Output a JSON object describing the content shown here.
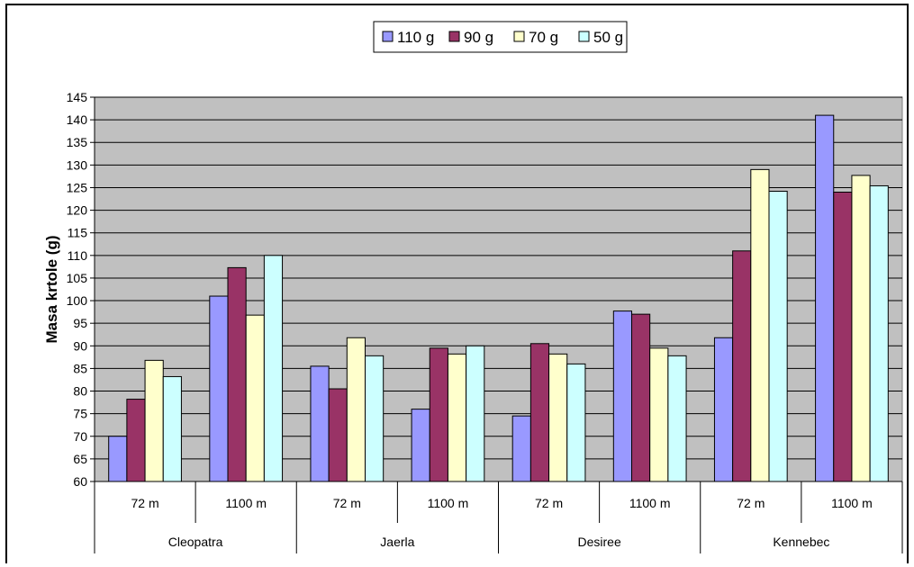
{
  "chart_data": {
    "type": "bar",
    "title": "",
    "ylabel": "Masa krtole (g)",
    "xlabel": "",
    "ylim": [
      60,
      145
    ],
    "ytick_step": 5,
    "grid": true,
    "legend_position": "top-center",
    "groups": [
      {
        "label": "Cleopatra",
        "subcategories": [
          "72 m",
          "1100 m"
        ]
      },
      {
        "label": "Jaerla",
        "subcategories": [
          "72 m",
          "1100 m"
        ]
      },
      {
        "label": "Desiree",
        "subcategories": [
          "72 m",
          "1100 m"
        ]
      },
      {
        "label": "Kennebec",
        "subcategories": [
          "72 m",
          "1100 m"
        ]
      }
    ],
    "categories": [
      "72 m",
      "1100 m",
      "72 m",
      "1100 m",
      "72 m",
      "1100 m",
      "72 m",
      "1100 m"
    ],
    "series": [
      {
        "name": "110 g",
        "color": "#9999FF",
        "values": [
          70,
          101,
          85.5,
          76,
          74.5,
          97.7,
          91.8,
          141
        ]
      },
      {
        "name": "90 g",
        "color": "#993366",
        "values": [
          78.2,
          107.3,
          80.5,
          89.5,
          90.5,
          97,
          111,
          124
        ]
      },
      {
        "name": "70 g",
        "color": "#FFFFCC",
        "values": [
          86.8,
          96.8,
          91.8,
          88.2,
          88.2,
          89.5,
          129,
          127.7
        ]
      },
      {
        "name": "50 g",
        "color": "#CCFFFF",
        "values": [
          83.2,
          110,
          87.8,
          90,
          86,
          87.8,
          124.2,
          125.4
        ]
      }
    ],
    "plot_background": "#C0C0C0"
  }
}
